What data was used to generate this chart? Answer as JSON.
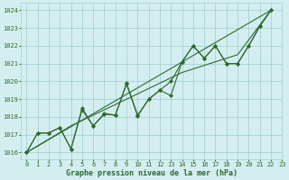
{
  "line1_x": [
    0,
    1,
    2,
    3,
    4,
    5,
    6,
    7,
    8,
    9,
    10,
    11,
    12,
    13,
    14,
    15,
    16,
    17,
    18,
    19,
    20,
    21,
    22
  ],
  "line1_y": [
    1016.0,
    1017.1,
    1017.1,
    1017.4,
    1016.2,
    1018.4,
    1017.5,
    1018.2,
    1018.1,
    1019.9,
    1018.1,
    1019.0,
    1019.5,
    1019.2,
    1021.1,
    1022.0,
    1021.3,
    1022.0,
    1021.0,
    1021.0,
    1022.0,
    1023.1,
    1024.0
  ],
  "line2_x": [
    0,
    1,
    2,
    3,
    4,
    5,
    6,
    7,
    8,
    9,
    10,
    11,
    12,
    13,
    14,
    15,
    16,
    17,
    18,
    19,
    20,
    21,
    22
  ],
  "line2_y": [
    1016.0,
    1017.1,
    1017.1,
    1017.4,
    1016.2,
    1018.5,
    1017.5,
    1018.15,
    1018.1,
    1019.85,
    1018.05,
    1019.0,
    1019.5,
    1020.0,
    1021.1,
    1022.0,
    1021.3,
    1022.0,
    1021.0,
    1021.0,
    1022.0,
    1023.1,
    1024.0
  ],
  "line3_x": [
    0,
    22
  ],
  "line3_y": [
    1016.0,
    1024.0
  ],
  "line4_x": [
    0,
    4,
    9,
    14,
    19,
    22
  ],
  "line4_y": [
    1016.0,
    1017.5,
    1019.0,
    1020.5,
    1021.5,
    1024.0
  ],
  "line_color": "#2d6a2d",
  "bg_color": "#d4eef0",
  "grid_color": "#9ecece",
  "ylim_min": 1015.6,
  "ylim_max": 1024.4,
  "xlim_min": -0.5,
  "xlim_max": 23.0,
  "yticks": [
    1016,
    1017,
    1018,
    1019,
    1020,
    1021,
    1022,
    1023,
    1024
  ],
  "xticks": [
    0,
    1,
    2,
    3,
    4,
    5,
    6,
    7,
    8,
    9,
    10,
    11,
    12,
    13,
    14,
    15,
    16,
    17,
    18,
    19,
    20,
    21,
    22,
    23
  ],
  "xlabel": "Graphe pression niveau de la mer (hPa)",
  "tick_fontsize": 5.0,
  "xlabel_fontsize": 6.0
}
